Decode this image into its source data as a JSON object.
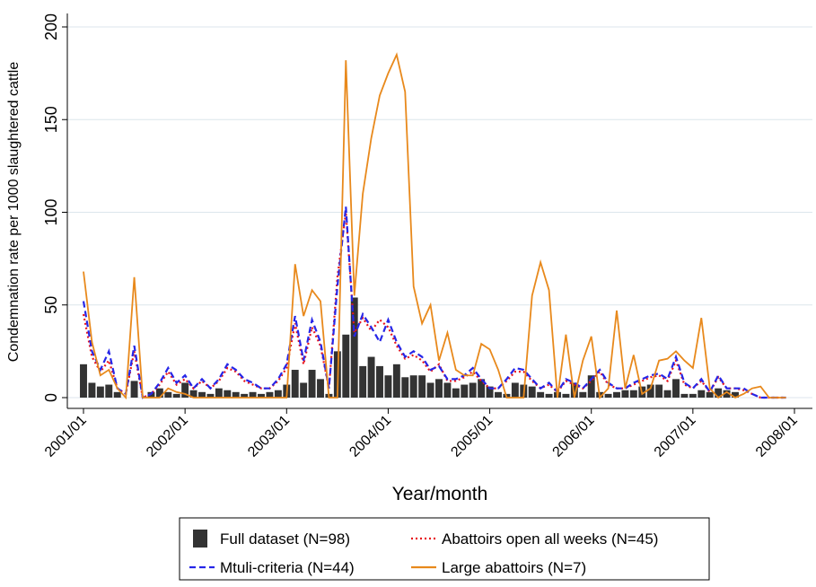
{
  "chart_data": {
    "type": "bar_line",
    "ylabel": "Condemnation rate per 1000 slaughtered cattle",
    "xlabel": "Year/month",
    "x": [
      "2001/01",
      "2001/02",
      "2001/03",
      "2001/04",
      "2001/05",
      "2001/06",
      "2001/07",
      "2001/08",
      "2001/09",
      "2001/10",
      "2001/11",
      "2001/12",
      "2002/01",
      "2002/02",
      "2002/03",
      "2002/04",
      "2002/05",
      "2002/06",
      "2002/07",
      "2002/08",
      "2002/09",
      "2002/10",
      "2002/11",
      "2002/12",
      "2003/01",
      "2003/02",
      "2003/03",
      "2003/04",
      "2003/05",
      "2003/06",
      "2003/07",
      "2003/08",
      "2003/09",
      "2003/10",
      "2003/11",
      "2003/12",
      "2004/01",
      "2004/02",
      "2004/03",
      "2004/04",
      "2004/05",
      "2004/06",
      "2004/07",
      "2004/08",
      "2004/09",
      "2004/10",
      "2004/11",
      "2004/12",
      "2005/01",
      "2005/02",
      "2005/03",
      "2005/04",
      "2005/05",
      "2005/06",
      "2005/07",
      "2005/08",
      "2005/09",
      "2005/10",
      "2005/11",
      "2005/12",
      "2006/01",
      "2006/02",
      "2006/03",
      "2006/04",
      "2006/05",
      "2006/06",
      "2006/07",
      "2006/08",
      "2006/09",
      "2006/10",
      "2006/11",
      "2006/12",
      "2007/01",
      "2007/02",
      "2007/03",
      "2007/04",
      "2007/05",
      "2007/06",
      "2007/07",
      "2007/08",
      "2007/09",
      "2007/10",
      "2007/11",
      "2007/12"
    ],
    "xlim": [
      "2001/01",
      "2008/01"
    ],
    "xticks": [
      "2001/01",
      "2002/01",
      "2003/01",
      "2004/01",
      "2005/01",
      "2006/01",
      "2007/01",
      "2008/01"
    ],
    "ylim": [
      0,
      200
    ],
    "yticks": [
      0,
      50,
      100,
      150,
      200
    ],
    "grid": true,
    "series": [
      {
        "name": "Full dataset (N=98)",
        "style": "bar",
        "color": "#333333",
        "values": [
          18,
          8,
          6,
          7,
          3,
          0,
          9,
          0,
          3,
          5,
          3,
          2,
          8,
          4,
          3,
          2,
          5,
          4,
          3,
          2,
          3,
          2,
          3,
          4,
          7,
          15,
          8,
          15,
          10,
          2,
          25,
          34,
          54,
          17,
          22,
          17,
          12,
          18,
          11,
          12,
          12,
          8,
          10,
          8,
          5,
          7,
          8,
          10,
          6,
          3,
          2,
          8,
          7,
          6,
          3,
          2,
          3,
          2,
          8,
          3,
          12,
          3,
          2,
          3,
          4,
          4,
          6,
          7,
          7,
          4,
          10,
          2,
          2,
          4,
          3,
          5,
          4,
          3,
          0,
          0,
          0,
          0,
          0,
          0
        ]
      },
      {
        "name": "Abattoirs open all weeks (N=45)",
        "style": "dot",
        "color": "#e8141c",
        "values": [
          45,
          22,
          14,
          20,
          5,
          2,
          25,
          0,
          2,
          7,
          14,
          7,
          10,
          5,
          9,
          5,
          9,
          16,
          14,
          9,
          7,
          5,
          5,
          9,
          16,
          40,
          18,
          38,
          28,
          5,
          65,
          100,
          35,
          43,
          36,
          42,
          38,
          28,
          21,
          23,
          20,
          14,
          18,
          9,
          9,
          11,
          14,
          9,
          5,
          5,
          9,
          14,
          14,
          9,
          5,
          7,
          3,
          9,
          7,
          5,
          9,
          14,
          7,
          5,
          5,
          7,
          9,
          11,
          12,
          9,
          20,
          7,
          5,
          9,
          3,
          11,
          5,
          5,
          4,
          2,
          0,
          0,
          0,
          0
        ]
      },
      {
        "name": "Mtuli-criteria (N=44)",
        "style": "dash",
        "color": "#2626e8",
        "values": [
          52,
          25,
          15,
          25,
          5,
          2,
          28,
          0,
          2,
          8,
          16,
          8,
          12,
          5,
          10,
          5,
          10,
          18,
          15,
          10,
          8,
          5,
          5,
          10,
          18,
          44,
          20,
          42,
          30,
          5,
          60,
          103,
          33,
          45,
          38,
          30,
          42,
          30,
          22,
          25,
          22,
          15,
          17,
          10,
          10,
          12,
          16,
          10,
          5,
          5,
          10,
          16,
          15,
          10,
          5,
          8,
          3,
          10,
          8,
          5,
          10,
          15,
          8,
          5,
          5,
          8,
          10,
          12,
          13,
          10,
          22,
          8,
          5,
          10,
          3,
          12,
          5,
          5,
          5,
          2,
          0,
          0,
          0,
          0
        ]
      },
      {
        "name": "Large abattoirs (N=7)",
        "style": "solid",
        "color": "#e8891c",
        "values": [
          68,
          30,
          12,
          15,
          5,
          0,
          65,
          0,
          0,
          0,
          5,
          3,
          2,
          0,
          0,
          0,
          0,
          0,
          0,
          0,
          0,
          0,
          0,
          0,
          0,
          72,
          44,
          58,
          52,
          0,
          0,
          182,
          55,
          110,
          140,
          163,
          175,
          185,
          165,
          60,
          40,
          50,
          20,
          35,
          15,
          12,
          12,
          29,
          26,
          15,
          0,
          0,
          0,
          55,
          73,
          58,
          0,
          34,
          0,
          20,
          33,
          0,
          5,
          47,
          5,
          23,
          2,
          5,
          20,
          21,
          25,
          20,
          16,
          43,
          5,
          0,
          3,
          0,
          2,
          5,
          6,
          0,
          0,
          0
        ]
      }
    ]
  }
}
